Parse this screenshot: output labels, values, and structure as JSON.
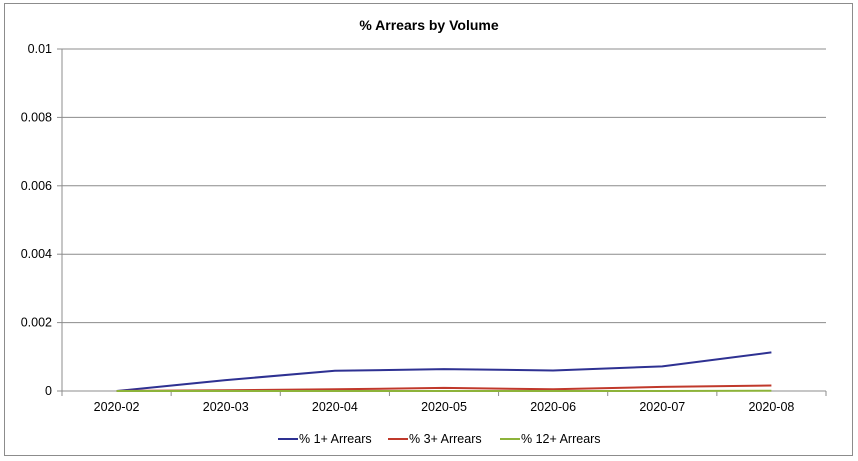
{
  "chart_data": {
    "type": "line",
    "title": "% Arrears by Volume",
    "xlabel": "",
    "ylabel": "",
    "categories": [
      "2020-02",
      "2020-03",
      "2020-04",
      "2020-05",
      "2020-06",
      "2020-07",
      "2020-08"
    ],
    "ylim": [
      0,
      0.01
    ],
    "yticks": [
      0,
      0.002,
      0.004,
      0.006,
      0.008,
      0.01
    ],
    "ytick_labels": [
      "0",
      "0.002",
      "0.004",
      "0.006",
      "0.008",
      "0.01"
    ],
    "grid": true,
    "legend_position": "bottom",
    "series": [
      {
        "name": "% 1+ Arrears",
        "color": "#2e3192",
        "values": [
          0,
          0.00032,
          0.00059,
          0.00064,
          0.0006,
          0.00072,
          0.00113
        ]
      },
      {
        "name": "% 3+ Arrears",
        "color": "#c0392b",
        "values": [
          0,
          2e-05,
          5e-05,
          9e-05,
          5e-05,
          0.00012,
          0.00016
        ]
      },
      {
        "name": "% 12+ Arrears",
        "color": "#8db33a",
        "values": [
          0,
          0.0,
          0.0,
          0.0,
          0.0,
          0.0,
          1e-05
        ]
      }
    ]
  }
}
